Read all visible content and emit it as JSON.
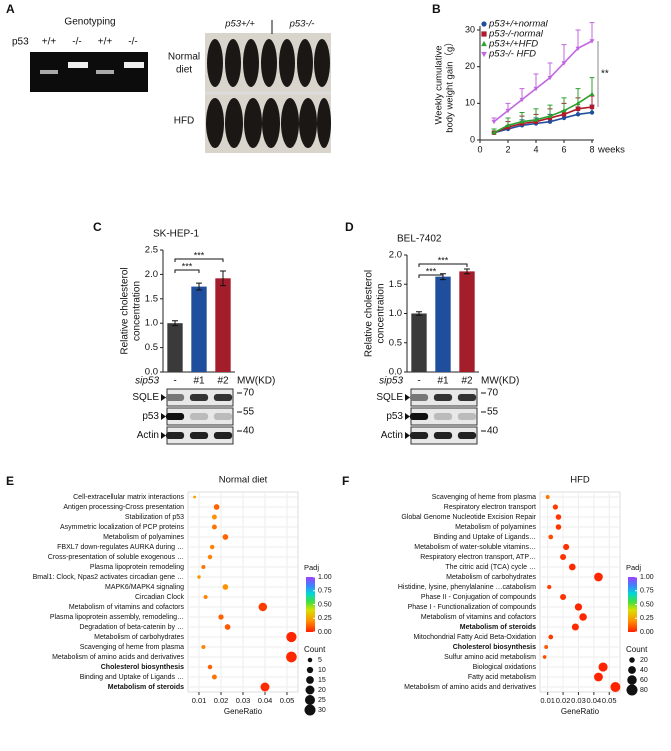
{
  "panel_labels": [
    "A",
    "B",
    "C",
    "D",
    "E",
    "F"
  ],
  "genotyping": {
    "title": "Genotyping",
    "gene": "p53",
    "lanes": [
      "+/+",
      "-/-",
      "+/+",
      "-/-"
    ]
  },
  "mice_photo": {
    "groups": [
      "p53+/+",
      "p53-/-"
    ],
    "rows": [
      [
        "Normal",
        "diet"
      ],
      [
        "HFD"
      ]
    ]
  },
  "blots": [
    {
      "proteins": [
        "SQLE",
        "p53",
        "Actin"
      ],
      "mw_header": "MW(KD)",
      "mw": [
        "70",
        "55",
        "40"
      ]
    },
    {
      "proteins": [
        "SQLE",
        "p53",
        "Actin"
      ],
      "mw_header": "MW(KD)",
      "mw": [
        "70",
        "55",
        "40"
      ]
    }
  ],
  "chart_data": [
    {
      "type": "line",
      "x": [
        1,
        2,
        3,
        4,
        5,
        6,
        7,
        8
      ],
      "xlim": [
        0,
        8
      ],
      "xticks": [
        0,
        2,
        4,
        6,
        8
      ],
      "xlabel": "weeks",
      "ylabel": [
        "Weekly cumulative",
        "body weight gain（g）"
      ],
      "ylim": [
        0,
        30
      ],
      "yticks": [
        0,
        10,
        20,
        30
      ],
      "legend": "upper left",
      "annotation": "**",
      "series": [
        {
          "name": "p53+/+normal",
          "color": "#1f4e9c",
          "marker": "circle",
          "values": [
            2,
            3,
            4,
            4.5,
            5,
            6,
            7,
            7.5
          ],
          "errors": [
            1,
            1,
            1.5,
            1.5,
            2,
            2,
            2,
            2
          ]
        },
        {
          "name": "p53-/-normal",
          "color": "#b0182c",
          "marker": "square",
          "values": [
            2,
            3.5,
            4.5,
            5,
            6,
            7,
            8.5,
            9
          ],
          "errors": [
            1,
            1.5,
            2,
            2,
            2.5,
            3,
            3,
            3
          ]
        },
        {
          "name": "p53+/+HFD",
          "color": "#2ca02c",
          "marker": "triangle-up",
          "values": [
            2,
            4,
            5,
            5.5,
            6.5,
            8,
            10,
            12.5
          ],
          "errors": [
            1,
            2,
            2.5,
            3,
            3,
            3.5,
            4,
            4.5
          ]
        },
        {
          "name": "p53-/- HFD",
          "color": "#c266e0",
          "marker": "triangle-down",
          "values": [
            5,
            8,
            11,
            14,
            17,
            21,
            25,
            27
          ],
          "errors": [
            1,
            2,
            3,
            4,
            4,
            5,
            5,
            5
          ]
        }
      ]
    },
    {
      "type": "bar",
      "title": "SK-HEP-1",
      "ylabel": [
        "Relative cholesterol",
        "concentration"
      ],
      "xlabel": "sip53",
      "categories": [
        "-",
        "#1",
        "#2"
      ],
      "values": [
        1.0,
        1.75,
        1.92
      ],
      "errors": [
        0.05,
        0.07,
        0.15
      ],
      "colors": [
        "#3a3a3a",
        "#1f4e9c",
        "#a31d2b"
      ],
      "ylim": [
        0,
        2.5
      ],
      "yticks": [
        {
          "value": 0,
          "label": "0.0"
        },
        0.5,
        {
          "value": 1,
          "label": "1.0"
        },
        1.5,
        {
          "value": 2,
          "label": "2.0"
        },
        2.5
      ],
      "annotations": [
        "***",
        "***"
      ]
    },
    {
      "type": "bar",
      "title": "BEL-7402",
      "ylabel": [
        "Relative cholesterol",
        "concentration"
      ],
      "xlabel": "sip53",
      "categories": [
        "-",
        "#1",
        "#2"
      ],
      "values": [
        1.0,
        1.63,
        1.72
      ],
      "errors": [
        0.03,
        0.05,
        0.04
      ],
      "colors": [
        "#3a3a3a",
        "#1f4e9c",
        "#a31d2b"
      ],
      "ylim": [
        0,
        2
      ],
      "yticks": [
        {
          "value": 0,
          "label": "0.0"
        },
        0.5,
        {
          "value": 1,
          "label": "1.0"
        },
        1.5,
        {
          "value": 2,
          "label": "2.0"
        }
      ],
      "annotations": [
        "***",
        "***"
      ]
    },
    {
      "type": "dot",
      "title": "Normal diet",
      "xlabel": "GeneRatio",
      "categories": [
        "Cell-extracellular matrix interactions",
        "Antigen processing-Cross presentation",
        "Stabilization of p53",
        "Asymmetric localization of PCP proteins",
        "Metabolism of polyamines",
        "FBXL7 down-regulates AURKA during …",
        "Cross-presentation of soluble exogenous …",
        "Plasma lipoprotein remodeling",
        "Bmal1: Clock, Npas2 activates circadian gene …",
        "MAPK6/MAPK4 signaling",
        "Circadian Clock",
        "Metabolism of vitamins and cofactors",
        "Plasma lipoprotein assembly, remodeling…",
        "Degradation of beta-catenin by …",
        "Metabolism of carbohydrates",
        "Scavenging of heme from plasma",
        "Metabolism of amino acids and derivatives",
        "Cholesterol biosynthesis",
        "Binding and Uptake of Ligands …",
        "Metabolism of steroids"
      ],
      "values": [
        0.008,
        0.018,
        0.017,
        0.017,
        0.022,
        0.016,
        0.015,
        0.012,
        0.01,
        0.022,
        0.013,
        0.039,
        0.02,
        0.023,
        0.052,
        0.012,
        0.052,
        0.015,
        0.017,
        0.04
      ],
      "counts": [
        2,
        8,
        6,
        6,
        8,
        5,
        5,
        4,
        3,
        8,
        4,
        18,
        7,
        8,
        26,
        4,
        28,
        5,
        6,
        20
      ],
      "padj": [
        0.25,
        0.12,
        0.2,
        0.15,
        0.12,
        0.18,
        0.18,
        0.15,
        0.22,
        0.2,
        0.18,
        0.05,
        0.12,
        0.1,
        0.01,
        0.18,
        0.01,
        0.12,
        0.15,
        0.02
      ],
      "bold_categories": [
        17,
        19
      ],
      "xlim": [
        0.005,
        0.055
      ],
      "xticks": [
        0.01,
        0.02,
        0.03,
        0.04,
        0.05
      ],
      "grid": true,
      "color_title": "Padj",
      "color_lim": [
        0,
        1
      ],
      "color_ticks": [
        {
          "value": 1,
          "label": "1.00"
        },
        0.75,
        {
          "value": 0.5,
          "label": "0.50"
        },
        0.25,
        {
          "value": 0,
          "label": "0.00"
        }
      ],
      "size_title": "Count",
      "size_ticks": [
        5,
        10,
        15,
        20,
        25,
        30
      ]
    },
    {
      "type": "dot",
      "title": "HFD",
      "xlabel": "GeneRatio",
      "categories": [
        "Scavenging of heme from plasma",
        "Respiratory electron transport",
        "Global Genome Nucleotide Excision Repair",
        "Metabolism of polyamines",
        "Binding and Uptake of Ligands…",
        "Metabolism of water-soluble vitamins…",
        "Respiratory electron transport, ATP…",
        "The citric acid (TCA) cycle …",
        "Metabolism of carbohydrates",
        "Histidine, lysine, phenylalanine …catabolism",
        "Phase II - Conjugation of compounds",
        "Phase I - Functionalization of compounds",
        "Metabolism of vitamins and cofactors",
        "Metabolism of steroids",
        "Mitochondrial Fatty Acid Beta-Oxidation",
        "Cholesterol biosynthesis",
        "Sulfur amino acid metabolism",
        "Biological oxidations",
        "Fatty acid metabolism",
        "Metabolism of amino acids and derivatives"
      ],
      "values": [
        0.01,
        0.015,
        0.017,
        0.017,
        0.012,
        0.022,
        0.02,
        0.026,
        0.043,
        0.011,
        0.02,
        0.03,
        0.033,
        0.028,
        0.012,
        0.009,
        0.008,
        0.046,
        0.043,
        0.054
      ],
      "counts": [
        10,
        18,
        20,
        20,
        15,
        25,
        24,
        30,
        50,
        12,
        24,
        35,
        38,
        33,
        15,
        10,
        9,
        55,
        52,
        65
      ],
      "padj": [
        0.15,
        0.05,
        0.04,
        0.04,
        0.08,
        0.03,
        0.03,
        0.02,
        0.01,
        0.06,
        0.03,
        0.01,
        0.01,
        0.02,
        0.05,
        0.1,
        0.08,
        0.005,
        0.005,
        0.005
      ],
      "bold_categories": [
        13,
        15
      ],
      "xlim": [
        0.005,
        0.057
      ],
      "xticks": [
        0.01,
        0.02,
        0.03,
        0.04,
        0.05
      ],
      "grid": true,
      "color_title": "Padj",
      "color_lim": [
        0,
        1
      ],
      "color_ticks": [
        {
          "value": 1,
          "label": "1.00"
        },
        0.75,
        {
          "value": 0.5,
          "label": "0.50"
        },
        0.25,
        {
          "value": 0,
          "label": "0.00"
        }
      ],
      "size_title": "Count",
      "size_ticks": [
        20,
        40,
        60,
        80
      ]
    }
  ]
}
